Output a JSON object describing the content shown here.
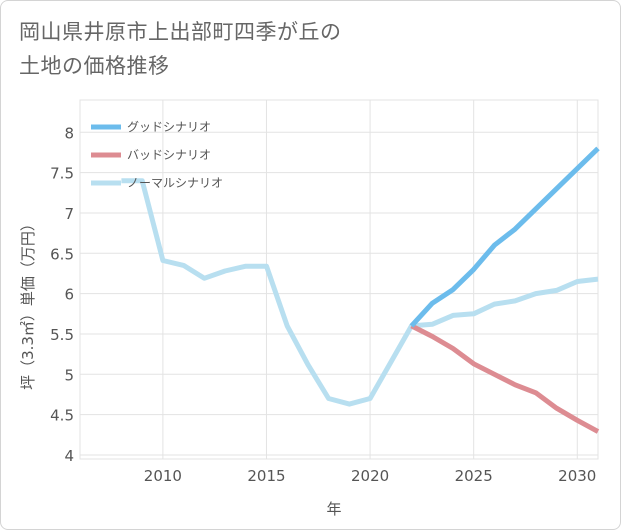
{
  "title": "岡山県井原市上出部町四季が丘の\n土地の価格推移",
  "chart_data": {
    "type": "line",
    "xlabel": "年",
    "ylabel": "坪（3.3㎡）単価（万円）",
    "xlim": [
      2006,
      2031
    ],
    "ylim": [
      3.95,
      8.4
    ],
    "x_ticks": [
      2010,
      2015,
      2020,
      2025,
      2030
    ],
    "y_ticks": [
      4,
      4.5,
      5,
      5.5,
      6,
      6.5,
      7,
      7.5,
      8
    ],
    "x_tick_labels": [
      "2010",
      "2015",
      "2020",
      "2025",
      "2030"
    ],
    "y_tick_labels": [
      "4",
      "4.5",
      "5",
      "5.5",
      "6",
      "6.5",
      "7",
      "7.5",
      "8"
    ],
    "grid": true,
    "legend_position": "top-left",
    "series": [
      {
        "name": "グッドシナリオ",
        "color": "#6cbcec",
        "x": [
          2022,
          2023,
          2024,
          2025,
          2026,
          2027,
          2028,
          2029,
          2030,
          2031
        ],
        "values": [
          5.6,
          5.88,
          6.05,
          6.3,
          6.6,
          6.8,
          7.05,
          7.3,
          7.55,
          7.8
        ]
      },
      {
        "name": "バッドシナリオ",
        "color": "#dd8c92",
        "x": [
          2022,
          2023,
          2024,
          2025,
          2026,
          2027,
          2028,
          2029,
          2030,
          2031
        ],
        "values": [
          5.6,
          5.47,
          5.32,
          5.13,
          5.0,
          4.87,
          4.77,
          4.58,
          4.43,
          4.29
        ]
      },
      {
        "name": "ノーマルシナリオ",
        "color": "#b8dff0",
        "x": [
          2008,
          2009,
          2010,
          2011,
          2012,
          2013,
          2014,
          2015,
          2016,
          2017,
          2018,
          2019,
          2020,
          2021,
          2022,
          2023,
          2024,
          2025,
          2026,
          2027,
          2028,
          2029,
          2030,
          2031
        ],
        "values": [
          7.4,
          7.4,
          6.41,
          6.35,
          6.19,
          6.28,
          6.34,
          6.34,
          5.6,
          5.12,
          4.7,
          4.63,
          4.7,
          5.15,
          5.6,
          5.62,
          5.73,
          5.75,
          5.87,
          5.91,
          6.0,
          6.04,
          6.15,
          6.18
        ]
      }
    ]
  }
}
